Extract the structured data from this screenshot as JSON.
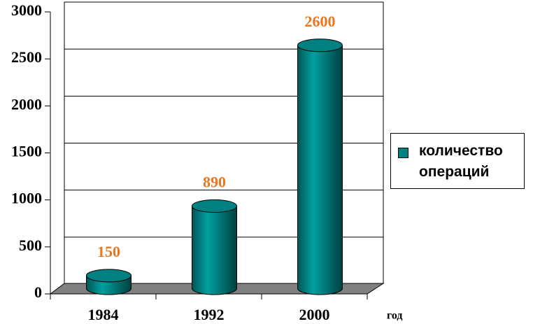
{
  "chart_data": {
    "type": "cylinder",
    "categories": [
      "1984",
      "1992",
      "2000"
    ],
    "series": [
      {
        "name": "количество операций",
        "color": "#008080",
        "values": [
          150,
          890,
          2600
        ]
      }
    ],
    "value_label_color": "#e8771f",
    "x_label": "год",
    "ylim": [
      0,
      3000
    ],
    "yticks": [
      0,
      500,
      1000,
      1500,
      2000,
      2500,
      3000
    ],
    "grid": true,
    "legend": "right"
  }
}
